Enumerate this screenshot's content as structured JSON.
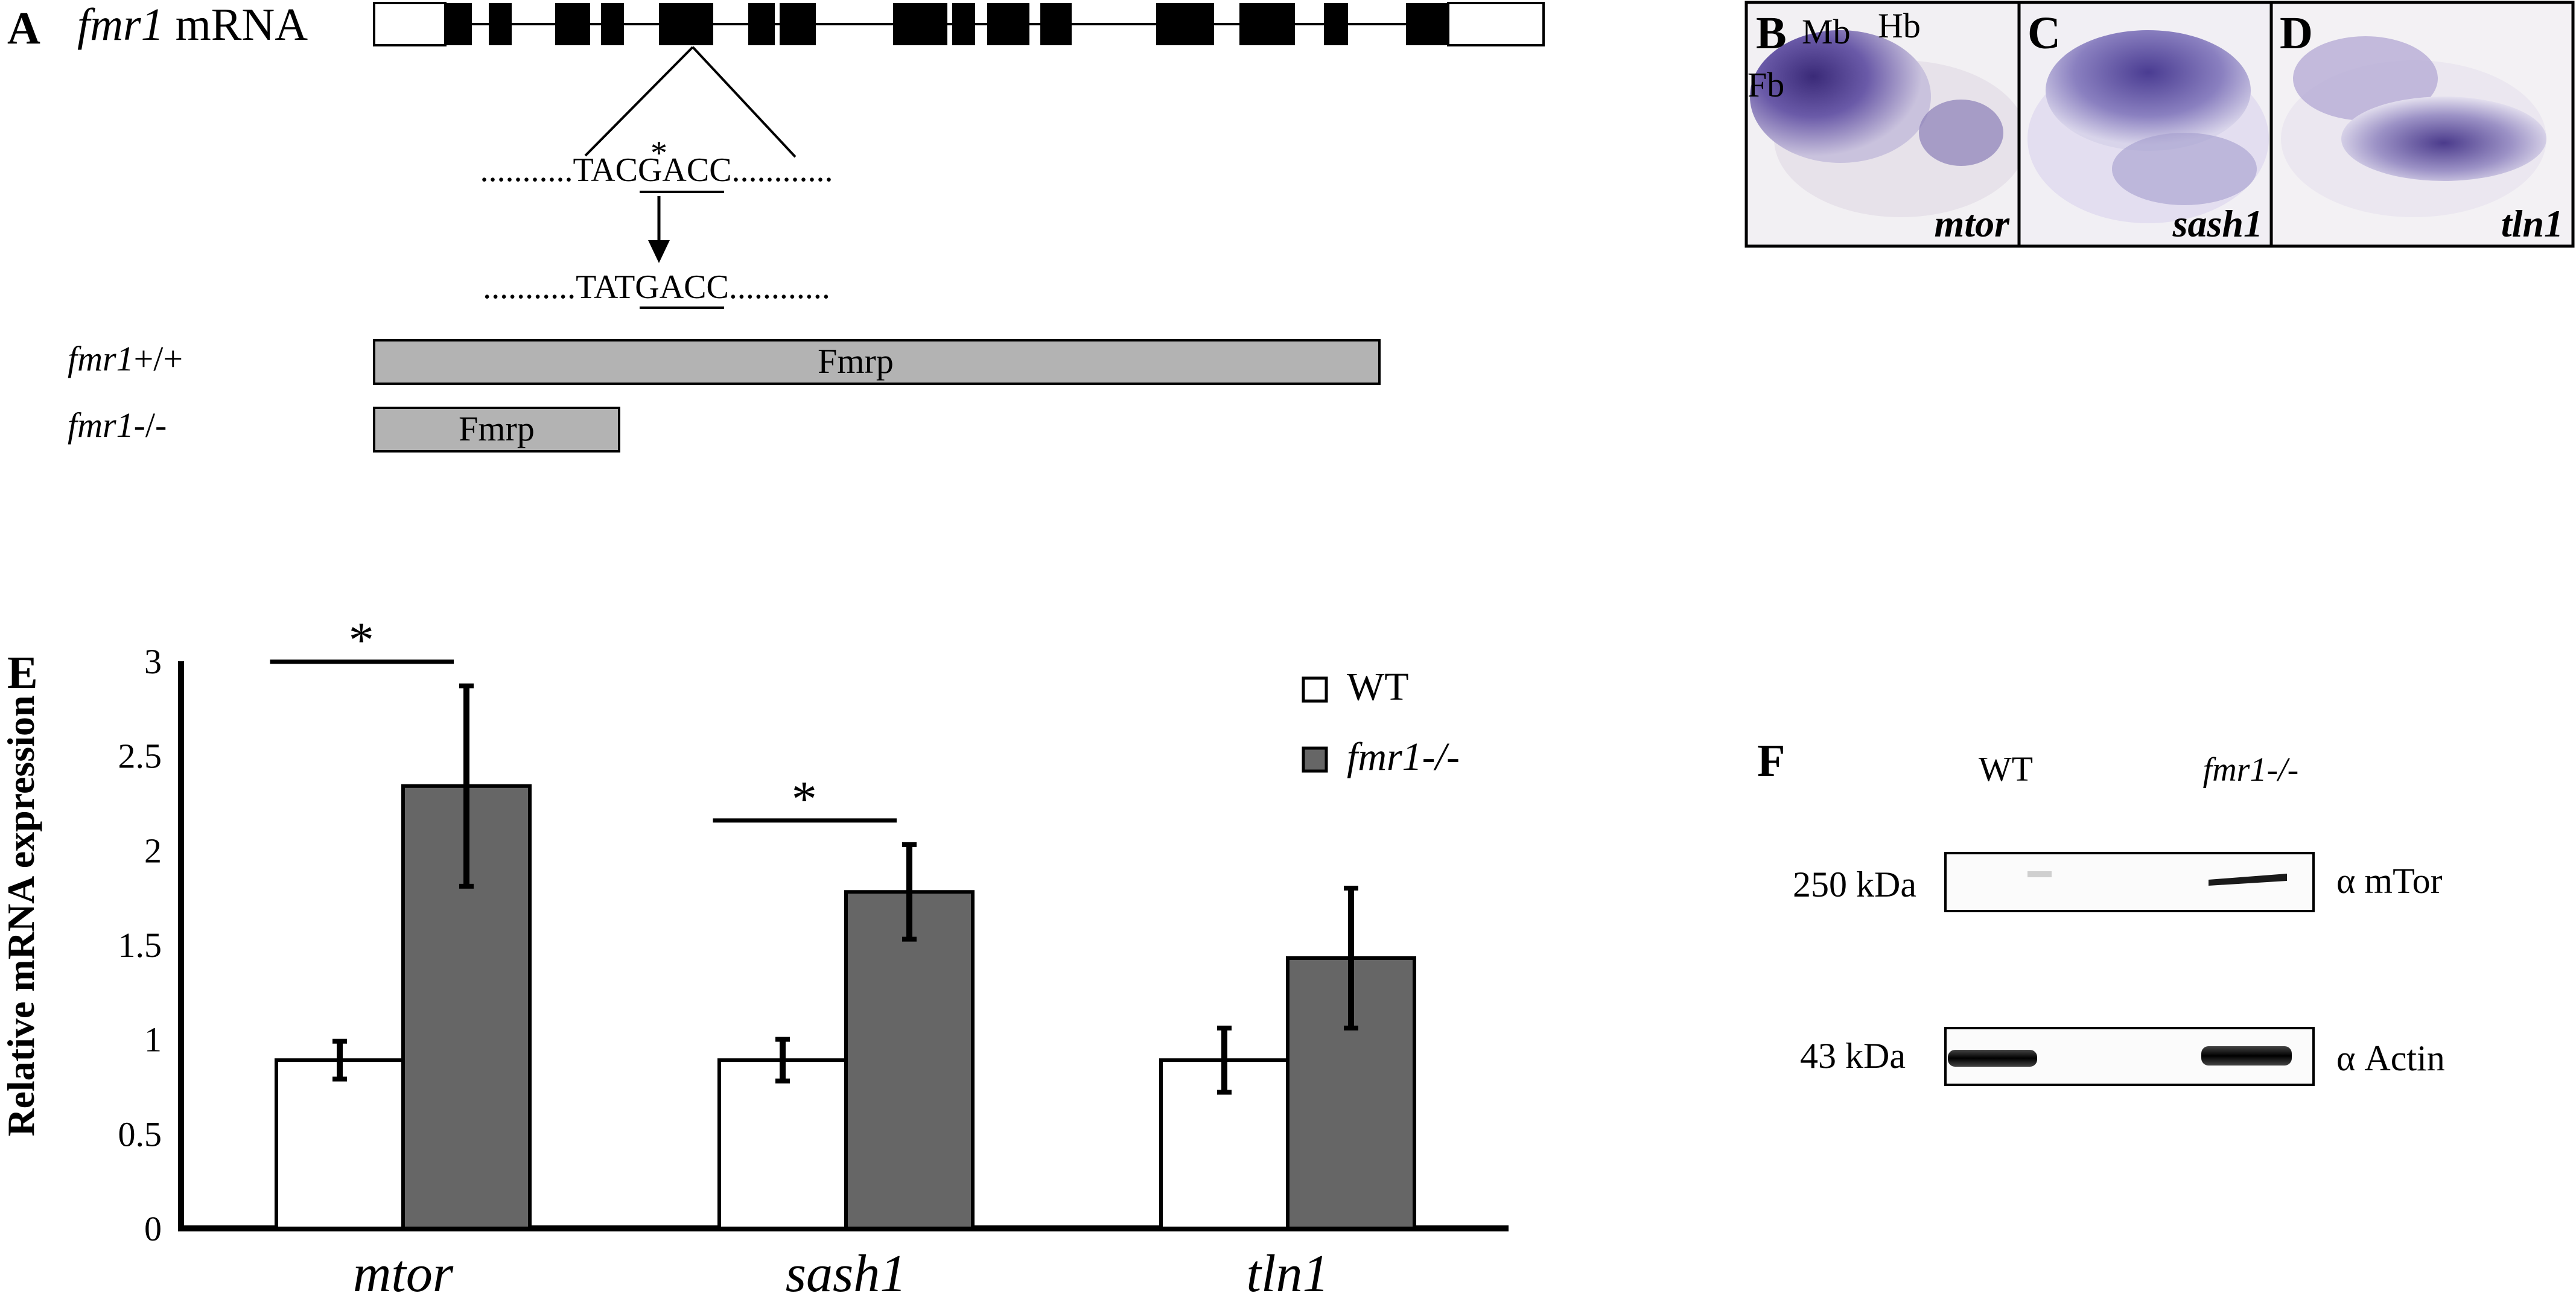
{
  "panel_a": {
    "letter": "A",
    "gene": "fmr1",
    "gene_suffix": " mRNA",
    "seq_wt_left": "...........TA",
    "seq_wt_mut": "CGA",
    "seq_wt_right": "CC............",
    "seq_wt_star": "*",
    "seq_mut_left": "...........TA",
    "seq_mut_mut": "TGA",
    "seq_mut_right": "CC............",
    "wt_genotype_gene": "fmr1",
    "wt_genotype_suffix": "+/+",
    "mut_genotype_gene": "fmr1",
    "mut_genotype_suffix": "-/-",
    "protein_label": "Fmrp"
  },
  "panel_bcd": [
    {
      "letter": "B",
      "gene": "mtor",
      "annotations": [
        "Mb",
        "Hb",
        "Fb"
      ]
    },
    {
      "letter": "C",
      "gene": "sash1",
      "annotations": []
    },
    {
      "letter": "D",
      "gene": "tln1",
      "annotations": []
    }
  ],
  "panel_f": {
    "letter": "F",
    "lanes": [
      "WT",
      "fmr1-/-"
    ],
    "rows": [
      {
        "marker": "250 kDa",
        "antibody": "α mTor"
      },
      {
        "marker": "43 kDa",
        "antibody": "α Actin"
      }
    ]
  },
  "chart_data": {
    "type": "bar",
    "panel_letter": "E",
    "title": "",
    "xlabel": "",
    "ylabel": "Relative mRNA expression",
    "ylim": [
      0,
      3
    ],
    "yticks": [
      "0",
      "0.5",
      "1",
      "1.5",
      "2",
      "2.5",
      "3"
    ],
    "categories": [
      "mtor",
      "sash1",
      "tln1"
    ],
    "series": [
      {
        "name": "WT",
        "color": "#ffffff",
        "values": [
          0.89,
          0.89,
          0.89
        ],
        "errors": [
          0.1,
          0.11,
          0.17
        ]
      },
      {
        "name": "fmr1-/-",
        "color": "#666666",
        "values": [
          2.34,
          1.78,
          1.43
        ],
        "errors": [
          0.53,
          0.25,
          0.37
        ]
      }
    ],
    "significance": [
      {
        "category": "mtor",
        "mark": "*"
      },
      {
        "category": "sash1",
        "mark": "*"
      }
    ],
    "legend_position": "top-right",
    "grid": false
  }
}
